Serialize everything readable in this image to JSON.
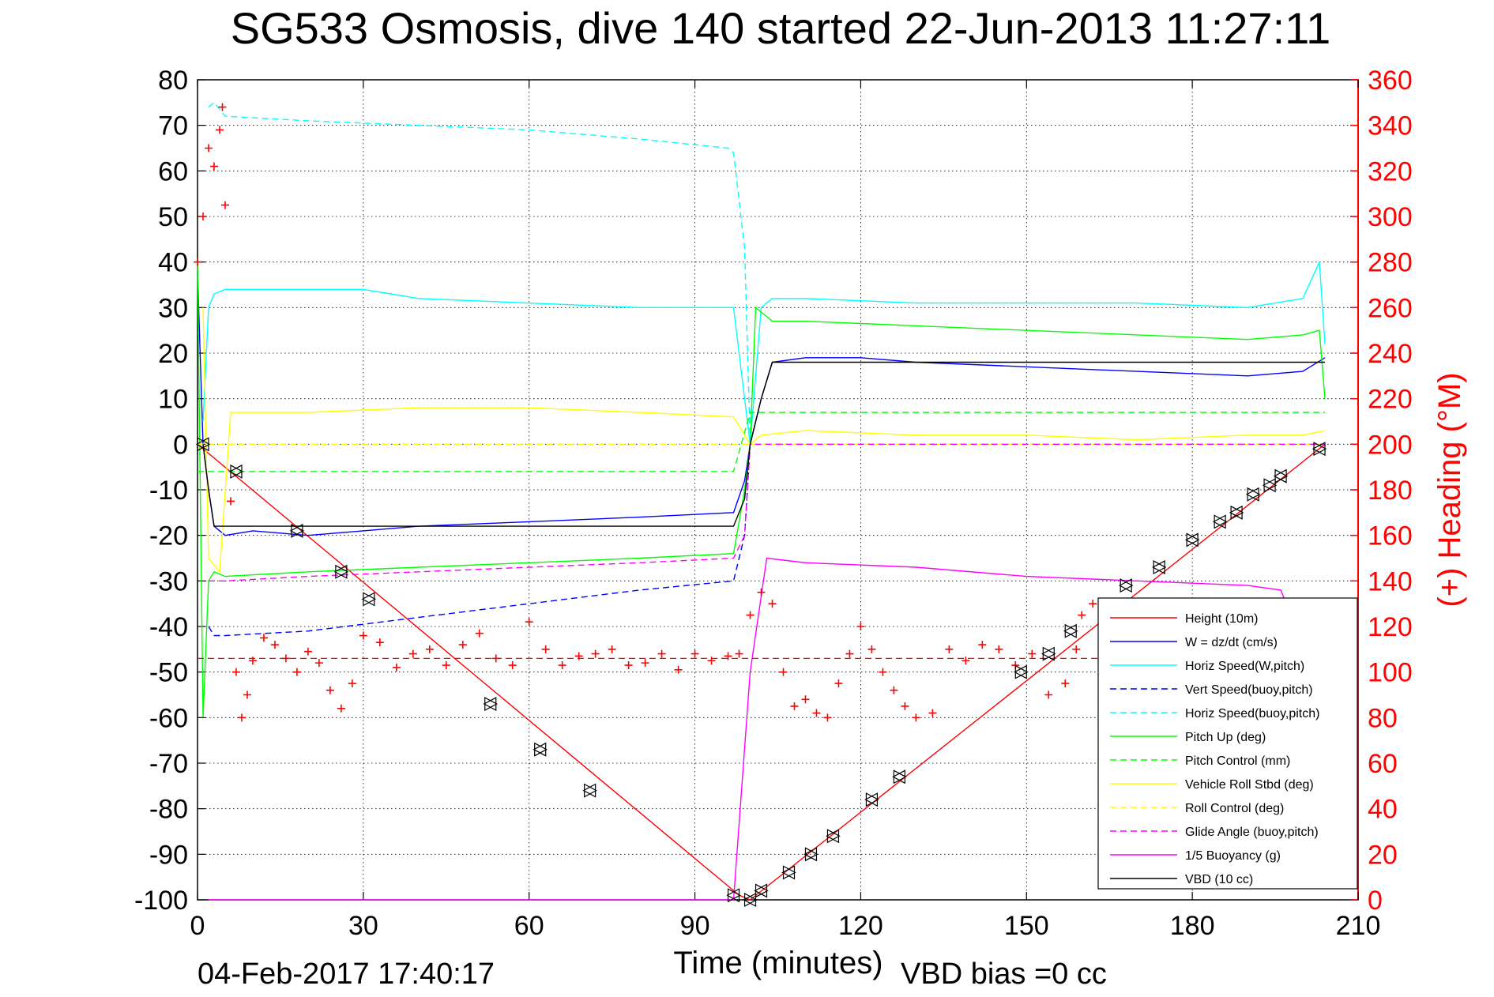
{
  "chart_data": {
    "type": "line",
    "title": "SG533 Osmosis, dive 140 started 22-Jun-2013 11:27:11",
    "xlabel": "Time (minutes)",
    "ylabel_right": "(+) Heading (°M)",
    "footer_left": "04-Feb-2017 17:40:17",
    "footer_right": "VBD bias =0 cc",
    "xlim": [
      0,
      210
    ],
    "ylim_left": [
      -100,
      80
    ],
    "ylim_right": [
      0,
      360
    ],
    "grid": true,
    "legend_position": "bottom-right",
    "x_ticks": [
      "0",
      "30",
      "60",
      "90",
      "120",
      "150",
      "180",
      "210"
    ],
    "y_ticks_left": [
      "80",
      "70",
      "60",
      "50",
      "40",
      "30",
      "20",
      "10",
      "0",
      "-10",
      "-20",
      "-30",
      "-40",
      "-50",
      "-60",
      "-70",
      "-80",
      "-90",
      "-100"
    ],
    "y_ticks_right": [
      "360",
      "340",
      "320",
      "300",
      "280",
      "260",
      "240",
      "220",
      "200",
      "180",
      "160",
      "140",
      "120",
      "100",
      "80",
      "60",
      "40",
      "20",
      "0"
    ],
    "colors": {
      "red": "#ff0000",
      "blue": "#0000ff",
      "cyan": "#00ffff",
      "green": "#00ff00",
      "yellow": "#ffff00",
      "magenta": "#ff00ff",
      "black": "#000000"
    },
    "series": [
      {
        "name": "Height (10m)",
        "color": "#ff0000",
        "style": "solid",
        "x": [
          0,
          98,
          100,
          204
        ],
        "y": [
          0,
          -99,
          -100,
          0
        ]
      },
      {
        "name": "W = dz/dt (cm/s)",
        "color": "#0000ff",
        "style": "solid",
        "x": [
          0,
          1,
          2,
          3,
          5,
          10,
          20,
          30,
          40,
          60,
          80,
          97,
          99,
          100,
          102,
          104,
          110,
          120,
          130,
          150,
          170,
          190,
          200,
          204
        ],
        "y": [
          38,
          0,
          -10,
          -18,
          -20,
          -19,
          -20,
          -19,
          -18,
          -17,
          -16,
          -15,
          -8,
          0,
          10,
          18,
          19,
          19,
          18,
          17,
          16,
          15,
          16,
          19
        ]
      },
      {
        "name": "Horiz Speed(W,pitch)",
        "color": "#00ffff",
        "style": "solid",
        "x": [
          1,
          2,
          3,
          5,
          10,
          20,
          30,
          40,
          60,
          80,
          97,
          99,
          100,
          102,
          104,
          110,
          130,
          150,
          170,
          190,
          200,
          203,
          204
        ],
        "y": [
          5,
          30,
          33,
          34,
          34,
          34,
          34,
          32,
          31,
          30,
          30,
          10,
          0,
          30,
          32,
          32,
          31,
          31,
          31,
          30,
          32,
          40,
          22
        ]
      },
      {
        "name": "Vert Speed(buoy,pitch)",
        "color": "#0000ff",
        "style": "dashed",
        "x": [
          2,
          3,
          5,
          20,
          40,
          60,
          80,
          97,
          99,
          100
        ],
        "y": [
          -40,
          -42,
          -42,
          -41,
          -38,
          -35,
          -32,
          -30,
          -20,
          0
        ]
      },
      {
        "name": "Horiz Speed(buoy,pitch)",
        "color": "#00ffff",
        "style": "dashed",
        "x": [
          2,
          3,
          5,
          20,
          40,
          60,
          80,
          96,
          97,
          99,
          100
        ],
        "y": [
          74,
          75,
          72,
          71,
          70,
          69,
          67,
          65,
          64,
          43,
          0
        ]
      },
      {
        "name": "Pitch Up (deg)",
        "color": "#00ff00",
        "style": "solid",
        "x": [
          0,
          1,
          2,
          3,
          5,
          20,
          40,
          60,
          80,
          97,
          99,
          100,
          101,
          104,
          110,
          130,
          150,
          170,
          190,
          200,
          203,
          204
        ],
        "y": [
          40,
          -60,
          -30,
          -28,
          -29,
          -28,
          -27,
          -26,
          -25,
          -24,
          -10,
          0,
          30,
          27,
          27,
          26,
          25,
          24,
          23,
          24,
          25,
          10
        ]
      },
      {
        "name": "Pitch Control (mm)",
        "color": "#00ff00",
        "style": "dashed",
        "x": [
          0,
          5,
          97,
          100,
          204
        ],
        "y": [
          -6,
          -6,
          -6,
          7,
          7
        ]
      },
      {
        "name": "Vehicle Roll Stbd (deg)",
        "color": "#ffff00",
        "style": "solid",
        "x": [
          1,
          2,
          4,
          6,
          20,
          40,
          60,
          80,
          97,
          100,
          102,
          110,
          130,
          150,
          170,
          190,
          200,
          204
        ],
        "y": [
          30,
          -25,
          -28,
          7,
          7,
          8,
          8,
          7,
          6,
          0,
          2,
          3,
          2,
          2,
          1,
          2,
          2,
          3
        ]
      },
      {
        "name": "Roll Control (deg)",
        "color": "#ffff00",
        "style": "dashed",
        "x": [
          0,
          97,
          100,
          204
        ],
        "y": [
          0,
          0,
          0,
          0
        ]
      },
      {
        "name": "Glide Angle (buoy,pitch)",
        "color": "#ff00ff",
        "style": "dashed",
        "x": [
          2,
          3,
          5,
          20,
          40,
          60,
          80,
          97,
          99,
          100,
          102,
          204
        ],
        "y": [
          -30,
          -30,
          -30,
          -29,
          -28,
          -27,
          -26,
          -25,
          -20,
          0,
          0,
          0
        ]
      },
      {
        "name": "1/5 Buoyancy (g)",
        "color": "#ff00ff",
        "style": "solid",
        "x": [
          2,
          97,
          100,
          103,
          110,
          130,
          150,
          170,
          190,
          196,
          197
        ],
        "y": [
          -100,
          -100,
          -50,
          -25,
          -26,
          -27,
          -29,
          -30,
          -31,
          -32,
          -35
        ]
      },
      {
        "name": "VBD (10 cc)",
        "color": "#000000",
        "style": "solid",
        "x": [
          1,
          2,
          3,
          97,
          99,
          100,
          102,
          104,
          204
        ],
        "y": [
          0,
          -10,
          -18,
          -18,
          -12,
          0,
          10,
          18,
          18
        ]
      }
    ],
    "heading_series": {
      "color": "#ff0000",
      "marker": "+",
      "axis": "right",
      "reference_line": 106,
      "x": [
        0,
        1,
        2,
        3,
        4,
        4.5,
        5,
        6,
        7,
        8,
        9,
        10,
        12,
        14,
        16,
        18,
        20,
        22,
        24,
        26,
        28,
        30,
        33,
        36,
        39,
        42,
        45,
        48,
        51,
        54,
        57,
        60,
        63,
        66,
        69,
        72,
        75,
        78,
        81,
        84,
        87,
        90,
        93,
        96,
        98,
        100,
        102,
        104,
        106,
        108,
        110,
        112,
        114,
        116,
        118,
        120,
        122,
        124,
        126,
        128,
        130,
        133,
        136,
        139,
        142,
        145,
        148,
        151,
        154,
        157,
        159,
        160,
        162,
        165,
        168,
        171,
        174,
        177,
        180,
        183,
        186,
        189,
        192,
        195,
        198,
        201,
        204
      ],
      "y": [
        280,
        300,
        330,
        322,
        338,
        348,
        305,
        175,
        100,
        80,
        90,
        105,
        115,
        112,
        106,
        100,
        109,
        104,
        92,
        84,
        95,
        116,
        113,
        102,
        108,
        110,
        103,
        112,
        117,
        106,
        103,
        122,
        110,
        103,
        107,
        108,
        110,
        103,
        104,
        108,
        101,
        108,
        105,
        107,
        108,
        125,
        135,
        130,
        100,
        85,
        88,
        82,
        80,
        95,
        108,
        120,
        110,
        100,
        92,
        85,
        80,
        82,
        110,
        105,
        112,
        110,
        103,
        108,
        90,
        95,
        110,
        125,
        130,
        122,
        115,
        110,
        105,
        100,
        102,
        110,
        104,
        101,
        108,
        96,
        100,
        110,
        108
      ]
    },
    "marker_points": {
      "color": "#000000",
      "x": [
        1,
        7,
        18,
        26,
        31,
        53,
        62,
        71,
        97,
        100,
        102,
        107,
        111,
        115,
        122,
        127,
        149,
        154,
        158,
        168,
        174,
        180,
        185,
        188,
        191,
        194,
        196,
        203
      ],
      "y": [
        0,
        -6,
        -19,
        -28,
        -34,
        -57,
        -67,
        -76,
        -99,
        -100,
        -98,
        -94,
        -90,
        -86,
        -78,
        -73,
        -50,
        -46,
        -41,
        -31,
        -27,
        -21,
        -17,
        -15,
        -11,
        -9,
        -7,
        -1
      ]
    }
  }
}
